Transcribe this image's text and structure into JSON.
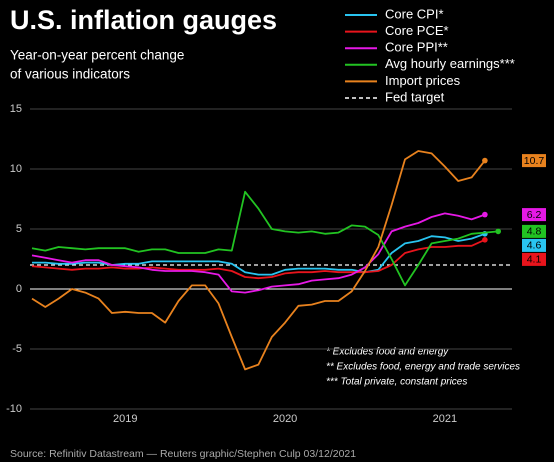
{
  "chart_data": {
    "type": "line",
    "title": "U.S. inflation gauges",
    "subtitle": [
      "Year-on-year percent change",
      "of various indicators"
    ],
    "categories": [
      null,
      null,
      null,
      null,
      null,
      null,
      null,
      "2019",
      null,
      null,
      null,
      null,
      null,
      null,
      null,
      null,
      null,
      null,
      null,
      "2020",
      null,
      null,
      null,
      null,
      null,
      null,
      null,
      null,
      null,
      null,
      null,
      "2021",
      null,
      null,
      null,
      null
    ],
    "series": [
      {
        "name": "Core CPI*",
        "color": "#29c4f0",
        "values": [
          2.2,
          2.2,
          2.1,
          2.1,
          2.2,
          2.2,
          2.0,
          2.1,
          2.1,
          2.3,
          2.3,
          2.3,
          2.3,
          2.3,
          2.3,
          2.1,
          1.4,
          1.2,
          1.2,
          1.6,
          1.7,
          1.7,
          1.7,
          1.6,
          1.6,
          1.4,
          1.6,
          3.0,
          3.8,
          4.0,
          4.4,
          4.3,
          4.0,
          4.2,
          4.6,
          null
        ]
      },
      {
        "name": "Core PCE*",
        "color": "#e8141c",
        "values": [
          1.9,
          1.8,
          1.7,
          1.6,
          1.7,
          1.7,
          1.8,
          1.7,
          1.7,
          1.8,
          1.7,
          1.6,
          1.6,
          1.6,
          1.7,
          1.5,
          1.0,
          0.9,
          1.0,
          1.3,
          1.4,
          1.4,
          1.5,
          1.4,
          1.4,
          1.4,
          1.5,
          2.0,
          3.0,
          3.3,
          3.5,
          3.5,
          3.6,
          3.6,
          4.1,
          null
        ]
      },
      {
        "name": "Core PPI**",
        "color": "#e619e6",
        "values": [
          2.8,
          2.6,
          2.4,
          2.2,
          2.4,
          2.4,
          2.0,
          1.9,
          1.8,
          1.6,
          1.5,
          1.5,
          1.5,
          1.4,
          1.2,
          -0.2,
          -0.3,
          -0.1,
          0.2,
          0.3,
          0.4,
          0.7,
          0.8,
          0.9,
          1.2,
          1.8,
          2.9,
          4.8,
          5.2,
          5.5,
          6.0,
          6.3,
          6.1,
          5.8,
          6.2,
          null
        ]
      },
      {
        "name": "Avg hourly earnings***",
        "color": "#22c322",
        "values": [
          3.4,
          3.2,
          3.5,
          3.4,
          3.3,
          3.4,
          3.4,
          3.4,
          3.1,
          3.3,
          3.3,
          3.0,
          3.0,
          3.0,
          3.3,
          3.2,
          8.1,
          6.7,
          5.0,
          4.8,
          4.7,
          4.8,
          4.6,
          4.7,
          5.3,
          5.2,
          4.5,
          2.5,
          0.3,
          2.0,
          3.8,
          4.0,
          4.2,
          4.6,
          4.7,
          4.8
        ]
      },
      {
        "name": "Import prices",
        "color": "#e8821e",
        "values": [
          -0.8,
          -1.5,
          -0.8,
          0,
          -0.3,
          -0.8,
          -2,
          -1.9,
          -2,
          -2,
          -2.8,
          -1,
          0.3,
          0.3,
          -1.2,
          -4,
          -6.7,
          -6.3,
          -4,
          -2.8,
          -1.4,
          -1.3,
          -1,
          -1,
          -0.2,
          1.5,
          3.5,
          7,
          10.8,
          11.5,
          11.3,
          10.2,
          9,
          9.3,
          10.7,
          null
        ]
      }
    ],
    "fed_target": {
      "name": "Fed target",
      "value": 2,
      "color": "#ffffff"
    },
    "ylim": [
      -10,
      15
    ],
    "yticks": [
      -10,
      -5,
      0,
      5,
      10,
      15
    ],
    "grid": true,
    "legend": "top-right",
    "footnotes": [
      "* Excludes food and energy",
      "** Excludes food, energy and trade services",
      "*** Total private, constant prices"
    ],
    "source": "Source: Refinitiv Datastream — Reuters graphic/Stephen Culp 03/12/2021"
  }
}
